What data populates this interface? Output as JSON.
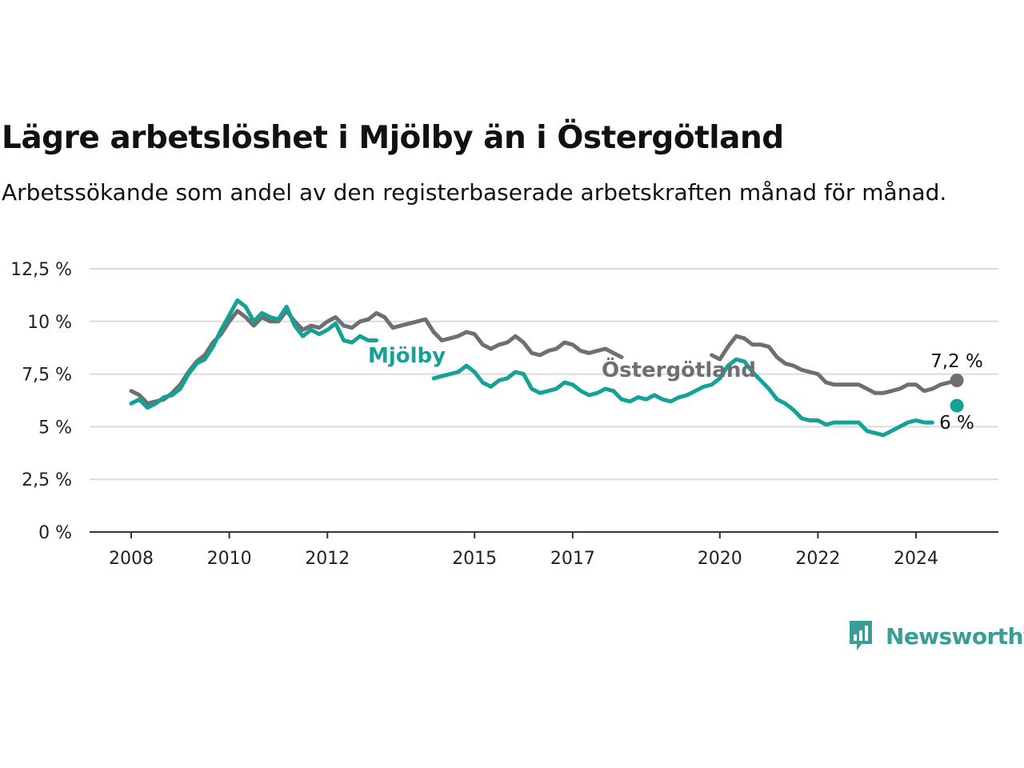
{
  "chart_data": {
    "type": "line",
    "title": "Lägre arbetslöshet i Mjölby än i Östergötland",
    "subtitle": "Arbetssökande som andel av den registerbaserade arbetskraften månad för månad.",
    "xlabel": "",
    "ylabel": "",
    "x_ticks": [
      "2008",
      "2010",
      "2012",
      "2015",
      "2017",
      "2020",
      "2022",
      "2024"
    ],
    "y_ticks": [
      "0 %",
      "2,5 %",
      "5 %",
      "7,5 %",
      "10 %",
      "12,5 %"
    ],
    "ylim": [
      0,
      12.5
    ],
    "grid": "horizontal",
    "series": [
      {
        "name": "Mjölby",
        "color": "#14a196",
        "end_label": "6 %",
        "points": [
          [
            "2008-01",
            6.1
          ],
          [
            "2008-03",
            6.3
          ],
          [
            "2008-05",
            5.9
          ],
          [
            "2008-07",
            6.1
          ],
          [
            "2008-09",
            6.4
          ],
          [
            "2008-11",
            6.5
          ],
          [
            "2009-01",
            6.8
          ],
          [
            "2009-03",
            7.5
          ],
          [
            "2009-05",
            8.0
          ],
          [
            "2009-07",
            8.2
          ],
          [
            "2009-09",
            8.8
          ],
          [
            "2009-11",
            9.6
          ],
          [
            "2010-01",
            10.3
          ],
          [
            "2010-03",
            11.0
          ],
          [
            "2010-05",
            10.7
          ],
          [
            "2010-07",
            10.0
          ],
          [
            "2010-09",
            10.4
          ],
          [
            "2010-11",
            10.2
          ],
          [
            "2011-01",
            10.1
          ],
          [
            "2011-03",
            10.7
          ],
          [
            "2011-05",
            9.8
          ],
          [
            "2011-07",
            9.3
          ],
          [
            "2011-09",
            9.6
          ],
          [
            "2011-11",
            9.4
          ],
          [
            "2012-01",
            9.6
          ],
          [
            "2012-03",
            9.9
          ],
          [
            "2012-05",
            9.1
          ],
          [
            "2012-07",
            9.0
          ],
          [
            "2012-09",
            9.3
          ],
          [
            "2012-11",
            9.1
          ],
          [
            "2013-01",
            9.1
          ],
          null,
          [
            "2014-03",
            7.3
          ],
          [
            "2014-05",
            7.4
          ],
          [
            "2014-07",
            7.5
          ],
          [
            "2014-09",
            7.6
          ],
          [
            "2014-11",
            7.9
          ],
          [
            "2015-01",
            7.6
          ],
          [
            "2015-03",
            7.1
          ],
          [
            "2015-05",
            6.9
          ],
          [
            "2015-07",
            7.2
          ],
          [
            "2015-09",
            7.3
          ],
          [
            "2015-11",
            7.6
          ],
          [
            "2016-01",
            7.5
          ],
          [
            "2016-03",
            6.8
          ],
          [
            "2016-05",
            6.6
          ],
          [
            "2016-07",
            6.7
          ],
          [
            "2016-09",
            6.8
          ],
          [
            "2016-11",
            7.1
          ],
          [
            "2017-01",
            7.0
          ],
          [
            "2017-03",
            6.7
          ],
          [
            "2017-05",
            6.5
          ],
          [
            "2017-07",
            6.6
          ],
          [
            "2017-09",
            6.8
          ],
          [
            "2017-11",
            6.7
          ],
          [
            "2018-01",
            6.3
          ],
          [
            "2018-03",
            6.2
          ],
          [
            "2018-05",
            6.4
          ],
          [
            "2018-07",
            6.3
          ],
          [
            "2018-09",
            6.5
          ],
          [
            "2018-11",
            6.3
          ],
          [
            "2019-01",
            6.2
          ],
          [
            "2019-03",
            6.4
          ],
          [
            "2019-05",
            6.5
          ],
          [
            "2019-07",
            6.7
          ],
          [
            "2019-09",
            6.9
          ],
          [
            "2019-11",
            7.0
          ],
          [
            "2020-01",
            7.3
          ],
          [
            "2020-03",
            7.9
          ],
          [
            "2020-05",
            8.2
          ],
          [
            "2020-07",
            8.1
          ],
          [
            "2020-09",
            7.6
          ],
          [
            "2020-11",
            7.2
          ],
          [
            "2021-01",
            6.8
          ],
          [
            "2021-03",
            6.3
          ],
          [
            "2021-05",
            6.1
          ],
          [
            "2021-07",
            5.8
          ],
          [
            "2021-09",
            5.4
          ],
          [
            "2021-11",
            5.3
          ],
          [
            "2022-01",
            5.3
          ],
          [
            "2022-03",
            5.1
          ],
          [
            "2022-05",
            5.2
          ],
          [
            "2022-07",
            5.2
          ],
          [
            "2022-09",
            5.2
          ],
          [
            "2022-11",
            5.2
          ],
          [
            "2023-01",
            4.8
          ],
          [
            "2023-03",
            4.7
          ],
          [
            "2023-05",
            4.6
          ],
          [
            "2023-07",
            4.8
          ],
          [
            "2023-09",
            5.0
          ],
          [
            "2023-11",
            5.2
          ],
          [
            "2024-01",
            5.3
          ],
          [
            "2024-03",
            5.2
          ],
          [
            "2024-05",
            5.2
          ],
          null,
          [
            "2024-11",
            6.0
          ]
        ]
      },
      {
        "name": "Östergötland",
        "color": "#6f6e73",
        "end_label": "7,2 %",
        "points": [
          [
            "2008-01",
            6.7
          ],
          [
            "2008-03",
            6.5
          ],
          [
            "2008-05",
            6.1
          ],
          [
            "2008-07",
            6.2
          ],
          [
            "2008-09",
            6.3
          ],
          [
            "2008-11",
            6.6
          ],
          [
            "2009-01",
            7.0
          ],
          [
            "2009-03",
            7.6
          ],
          [
            "2009-05",
            8.1
          ],
          [
            "2009-07",
            8.4
          ],
          [
            "2009-09",
            9.0
          ],
          [
            "2009-11",
            9.4
          ],
          [
            "2010-01",
            10.0
          ],
          [
            "2010-03",
            10.5
          ],
          [
            "2010-05",
            10.2
          ],
          [
            "2010-07",
            9.8
          ],
          [
            "2010-09",
            10.2
          ],
          [
            "2010-11",
            10.0
          ],
          [
            "2011-01",
            10.0
          ],
          [
            "2011-03",
            10.5
          ],
          [
            "2011-05",
            10.0
          ],
          [
            "2011-07",
            9.6
          ],
          [
            "2011-09",
            9.8
          ],
          [
            "2011-11",
            9.7
          ],
          [
            "2012-01",
            10.0
          ],
          [
            "2012-03",
            10.2
          ],
          [
            "2012-05",
            9.8
          ],
          [
            "2012-07",
            9.7
          ],
          [
            "2012-09",
            10.0
          ],
          [
            "2012-11",
            10.1
          ],
          [
            "2013-01",
            10.4
          ],
          [
            "2013-03",
            10.2
          ],
          [
            "2013-05",
            9.7
          ],
          [
            "2013-07",
            9.8
          ],
          [
            "2013-09",
            9.9
          ],
          [
            "2013-11",
            10.0
          ],
          [
            "2014-01",
            10.1
          ],
          [
            "2014-03",
            9.5
          ],
          [
            "2014-05",
            9.1
          ],
          [
            "2014-07",
            9.2
          ],
          [
            "2014-09",
            9.3
          ],
          [
            "2014-11",
            9.5
          ],
          [
            "2015-01",
            9.4
          ],
          [
            "2015-03",
            8.9
          ],
          [
            "2015-05",
            8.7
          ],
          [
            "2015-07",
            8.9
          ],
          [
            "2015-09",
            9.0
          ],
          [
            "2015-11",
            9.3
          ],
          [
            "2016-01",
            9.0
          ],
          [
            "2016-03",
            8.5
          ],
          [
            "2016-05",
            8.4
          ],
          [
            "2016-07",
            8.6
          ],
          [
            "2016-09",
            8.7
          ],
          [
            "2016-11",
            9.0
          ],
          [
            "2017-01",
            8.9
          ],
          [
            "2017-03",
            8.6
          ],
          [
            "2017-05",
            8.5
          ],
          [
            "2017-07",
            8.6
          ],
          [
            "2017-09",
            8.7
          ],
          [
            "2017-11",
            8.5
          ],
          [
            "2018-01",
            8.3
          ],
          null,
          [
            "2019-11",
            8.4
          ],
          [
            "2020-01",
            8.2
          ],
          [
            "2020-03",
            8.8
          ],
          [
            "2020-05",
            9.3
          ],
          [
            "2020-07",
            9.2
          ],
          [
            "2020-09",
            8.9
          ],
          [
            "2020-11",
            8.9
          ],
          [
            "2021-01",
            8.8
          ],
          [
            "2021-03",
            8.3
          ],
          [
            "2021-05",
            8.0
          ],
          [
            "2021-07",
            7.9
          ],
          [
            "2021-09",
            7.7
          ],
          [
            "2021-11",
            7.6
          ],
          [
            "2022-01",
            7.5
          ],
          [
            "2022-03",
            7.1
          ],
          [
            "2022-05",
            7.0
          ],
          [
            "2022-07",
            7.0
          ],
          [
            "2022-09",
            7.0
          ],
          [
            "2022-11",
            7.0
          ],
          [
            "2023-01",
            6.8
          ],
          [
            "2023-03",
            6.6
          ],
          [
            "2023-05",
            6.6
          ],
          [
            "2023-07",
            6.7
          ],
          [
            "2023-09",
            6.8
          ],
          [
            "2023-11",
            7.0
          ],
          [
            "2024-01",
            7.0
          ],
          [
            "2024-03",
            6.7
          ],
          [
            "2024-05",
            6.8
          ],
          [
            "2024-07",
            7.0
          ],
          [
            "2024-11",
            7.2
          ]
        ]
      }
    ]
  },
  "brand": {
    "name": "Newsworthy",
    "icon": "bar-chart-speech-bubble-icon",
    "color": "#3a9e96"
  }
}
